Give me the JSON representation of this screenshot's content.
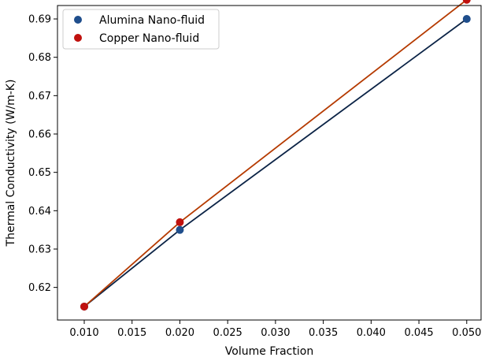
{
  "chart_data": {
    "type": "line",
    "xlabel": "Volume Fraction",
    "ylabel": "Thermal Conductivity (W/m-K)",
    "xlim": [
      0.0072,
      0.0515
    ],
    "ylim": [
      0.6115,
      0.6935
    ],
    "grid": false,
    "legend_position": "upper left",
    "x_ticks": [
      0.01,
      0.015,
      0.02,
      0.025,
      0.03,
      0.035,
      0.04,
      0.045,
      0.05
    ],
    "x_tick_labels": [
      "0.010",
      "0.015",
      "0.020",
      "0.025",
      "0.030",
      "0.035",
      "0.040",
      "0.045",
      "0.050"
    ],
    "y_ticks": [
      0.62,
      0.63,
      0.64,
      0.65,
      0.66,
      0.67,
      0.68,
      0.69
    ],
    "y_tick_labels": [
      "0.62",
      "0.63",
      "0.64",
      "0.65",
      "0.66",
      "0.67",
      "0.68",
      "0.69"
    ],
    "series": [
      {
        "name": "Alumina Nano-fluid",
        "marker_color": "#1f4e8c",
        "line_color": "#0b2346",
        "x": [
          0.01,
          0.02,
          0.05
        ],
        "y": [
          0.615,
          0.635,
          0.69
        ]
      },
      {
        "name": "Copper Nano-fluid",
        "marker_color": "#c0110e",
        "line_color": "#b53a00",
        "x": [
          0.01,
          0.02,
          0.05
        ],
        "y": [
          0.615,
          0.637,
          0.695
        ]
      }
    ]
  }
}
